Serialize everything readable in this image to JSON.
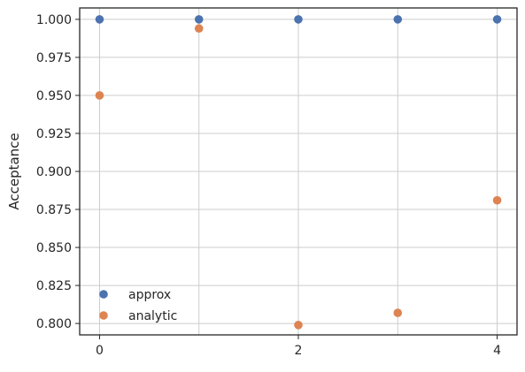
{
  "chart_data": {
    "type": "scatter",
    "xlabel": "",
    "ylabel": "Acceptance",
    "xlim": [
      -0.2,
      4.2
    ],
    "ylim": [
      0.7925,
      1.0075
    ],
    "xticks": [
      0,
      2,
      4
    ],
    "yticks": [
      0.8,
      0.825,
      0.85,
      0.875,
      0.9,
      0.925,
      0.95,
      0.975,
      1.0
    ],
    "xgridlines": [
      0,
      1,
      2,
      3,
      4
    ],
    "grid": true,
    "legend_position": "lower-left",
    "series": [
      {
        "name": "approx",
        "color": "#4c72b0",
        "x": [
          0,
          1,
          2,
          3,
          4
        ],
        "y": [
          1.0,
          1.0,
          1.0,
          1.0,
          1.0
        ]
      },
      {
        "name": "analytic",
        "color": "#dd8452",
        "x": [
          0,
          1,
          2,
          3,
          4
        ],
        "y": [
          0.95,
          0.994,
          0.799,
          0.807,
          0.881
        ]
      }
    ]
  }
}
